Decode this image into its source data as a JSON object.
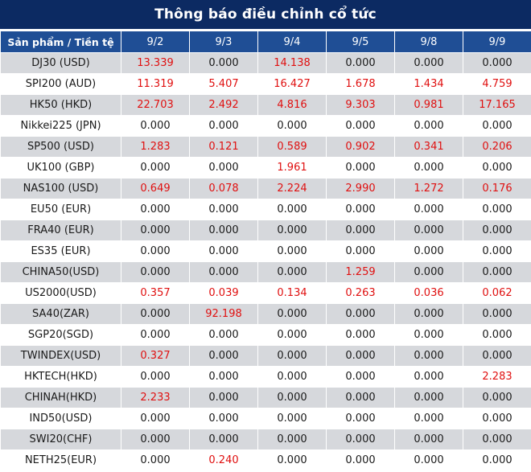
{
  "title": "Thông báo điều chỉnh cổ tức",
  "header": {
    "first": "Sản phẩm / Tiền tệ",
    "dates": [
      "9/2",
      "9/3",
      "9/4",
      "9/5",
      "9/8",
      "9/9"
    ]
  },
  "colors": {
    "header_bg": "#1f4e95",
    "title_bg": "#0c2a62",
    "positive": "#e01010",
    "stripe": "#d6d8dc"
  },
  "rows": [
    {
      "name": "DJ30 (USD)",
      "values": [
        "13.339",
        "0.000",
        "14.138",
        "0.000",
        "0.000",
        "0.000"
      ]
    },
    {
      "name": "SPI200 (AUD)",
      "values": [
        "11.319",
        "5.407",
        "16.427",
        "1.678",
        "1.434",
        "4.759"
      ]
    },
    {
      "name": "HK50 (HKD)",
      "values": [
        "22.703",
        "2.492",
        "4.816",
        "9.303",
        "0.981",
        "17.165"
      ]
    },
    {
      "name": "Nikkei225 (JPN)",
      "values": [
        "0.000",
        "0.000",
        "0.000",
        "0.000",
        "0.000",
        "0.000"
      ]
    },
    {
      "name": "SP500 (USD)",
      "values": [
        "1.283",
        "0.121",
        "0.589",
        "0.902",
        "0.341",
        "0.206"
      ]
    },
    {
      "name": "UK100 (GBP)",
      "values": [
        "0.000",
        "0.000",
        "1.961",
        "0.000",
        "0.000",
        "0.000"
      ]
    },
    {
      "name": "NAS100 (USD)",
      "values": [
        "0.649",
        "0.078",
        "2.224",
        "2.990",
        "1.272",
        "0.176"
      ]
    },
    {
      "name": "EU50 (EUR)",
      "values": [
        "0.000",
        "0.000",
        "0.000",
        "0.000",
        "0.000",
        "0.000"
      ]
    },
    {
      "name": "FRA40 (EUR)",
      "values": [
        "0.000",
        "0.000",
        "0.000",
        "0.000",
        "0.000",
        "0.000"
      ]
    },
    {
      "name": "ES35 (EUR)",
      "values": [
        "0.000",
        "0.000",
        "0.000",
        "0.000",
        "0.000",
        "0.000"
      ]
    },
    {
      "name": "CHINA50(USD)",
      "values": [
        "0.000",
        "0.000",
        "0.000",
        "1.259",
        "0.000",
        "0.000"
      ]
    },
    {
      "name": "US2000(USD)",
      "values": [
        "0.357",
        "0.039",
        "0.134",
        "0.263",
        "0.036",
        "0.062"
      ]
    },
    {
      "name": "SA40(ZAR)",
      "values": [
        "0.000",
        "92.198",
        "0.000",
        "0.000",
        "0.000",
        "0.000"
      ]
    },
    {
      "name": "SGP20(SGD)",
      "values": [
        "0.000",
        "0.000",
        "0.000",
        "0.000",
        "0.000",
        "0.000"
      ]
    },
    {
      "name": "TWINDEX(USD)",
      "values": [
        "0.327",
        "0.000",
        "0.000",
        "0.000",
        "0.000",
        "0.000"
      ]
    },
    {
      "name": "HKTECH(HKD)",
      "values": [
        "0.000",
        "0.000",
        "0.000",
        "0.000",
        "0.000",
        "2.283"
      ]
    },
    {
      "name": "CHINAH(HKD)",
      "values": [
        "2.233",
        "0.000",
        "0.000",
        "0.000",
        "0.000",
        "0.000"
      ]
    },
    {
      "name": "IND50(USD)",
      "values": [
        "0.000",
        "0.000",
        "0.000",
        "0.000",
        "0.000",
        "0.000"
      ]
    },
    {
      "name": "SWI20(CHF)",
      "values": [
        "0.000",
        "0.000",
        "0.000",
        "0.000",
        "0.000",
        "0.000"
      ]
    },
    {
      "name": "NETH25(EUR)",
      "values": [
        "0.000",
        "0.240",
        "0.000",
        "0.000",
        "0.000",
        "0.000"
      ]
    }
  ]
}
